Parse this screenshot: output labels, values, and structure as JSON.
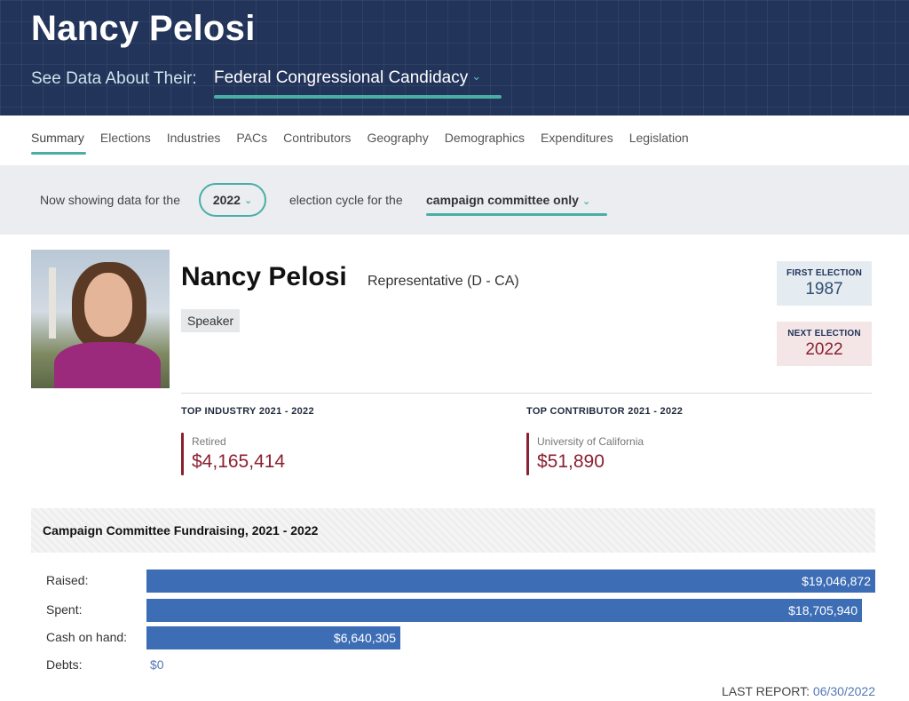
{
  "header": {
    "name": "Nancy Pelosi",
    "see_label": "See Data About Their:",
    "candidacy": "Federal Congressional Candidacy"
  },
  "tabs": [
    {
      "label": "Summary",
      "active": true
    },
    {
      "label": "Elections"
    },
    {
      "label": "Industries"
    },
    {
      "label": "PACs"
    },
    {
      "label": "Contributors"
    },
    {
      "label": "Geography"
    },
    {
      "label": "Demographics"
    },
    {
      "label": "Expenditures"
    },
    {
      "label": "Legislation"
    }
  ],
  "cycle": {
    "prefix": "Now showing data for the",
    "year": "2022",
    "middle": "election cycle for the",
    "committee": "campaign committee only"
  },
  "profile": {
    "name": "Nancy Pelosi",
    "role": "Representative (D - CA)",
    "badge": "Speaker",
    "first_election_label": "FIRST ELECTION",
    "first_election": "1987",
    "next_election_label": "NEXT ELECTION",
    "next_election": "2022"
  },
  "top_industry": {
    "heading": "TOP INDUSTRY 2021 - 2022",
    "name": "Retired",
    "amount": "$4,165,414"
  },
  "top_contributor": {
    "heading": "TOP CONTRIBUTOR 2021 - 2022",
    "name": "University of California",
    "amount": "$51,890"
  },
  "fundraising": {
    "title": "Campaign Committee Fundraising, 2021 - 2022",
    "rows": [
      {
        "label": "Raised:",
        "value": "$19,046,872",
        "amount": 19046872
      },
      {
        "label": "Spent:",
        "value": "$18,705,940",
        "amount": 18705940
      },
      {
        "label": "Cash on hand:",
        "value": "$6,640,305",
        "amount": 6640305
      },
      {
        "label": "Debts:",
        "value": "$0",
        "amount": 0
      }
    ],
    "bar_color": "#3d6db5"
  },
  "last_report": {
    "label": "LAST REPORT:",
    "date": "06/30/2022"
  },
  "colors": {
    "header_bg": "#22345a",
    "accent_teal": "#49aea5",
    "maroon": "#8b2030"
  }
}
